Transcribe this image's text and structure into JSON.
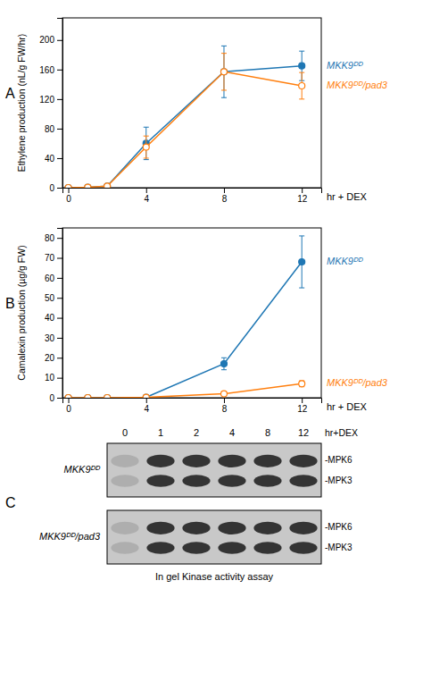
{
  "chart_data": [
    {
      "type": "line",
      "annotations": [
        "A"
      ],
      "ylabel": "Ethylene production (nL/g FW/hr)",
      "xlabel": "hr + DEX",
      "x": [
        0,
        1,
        2,
        4,
        8,
        12
      ],
      "xlim": [
        -0.3,
        13.0
      ],
      "xticks": [
        0,
        4,
        8,
        12
      ],
      "ylim": [
        0,
        230
      ],
      "yticks": [
        0,
        40,
        80,
        120,
        160,
        200
      ],
      "series": [
        {
          "name": "MKK9ᴰᴰ",
          "marker": "circle",
          "values": [
            0,
            0.5,
            2,
            60,
            157,
            165
          ],
          "errors": [
            0,
            0,
            0,
            22,
            35,
            20
          ]
        },
        {
          "name": "MKK9ᴰᴰ/pad3",
          "marker": "open-circle",
          "values": [
            0,
            0.5,
            2,
            55,
            157,
            138
          ],
          "errors": [
            0,
            0,
            0,
            15,
            25,
            18
          ]
        }
      ]
    },
    {
      "type": "line",
      "annotations": [
        "B"
      ],
      "ylabel": "Camalexin production (µg/g FW)",
      "xlabel": "hr + DEX",
      "x": [
        0,
        1,
        2,
        4,
        8,
        12
      ],
      "xlim": [
        -0.3,
        13.0
      ],
      "xticks": [
        0,
        4,
        8,
        12
      ],
      "ylim": [
        0,
        85
      ],
      "yticks": [
        0,
        10,
        20,
        30,
        40,
        50,
        60,
        70,
        80
      ],
      "series": [
        {
          "name": "MKK9ᴰᴰ",
          "marker": "circle",
          "values": [
            0,
            0,
            0,
            0.2,
            17,
            68
          ],
          "errors": [
            0,
            0,
            0,
            0,
            3,
            13
          ]
        },
        {
          "name": "MKK9ᴰᴰ/pad3",
          "marker": "open-circle",
          "values": [
            0,
            0,
            0,
            0.2,
            2,
            7
          ],
          "errors": [
            0,
            0,
            0,
            0,
            0.5,
            1.5
          ]
        }
      ]
    },
    {
      "type": "gel",
      "annotations": [
        "C",
        "hr+DEX",
        "-MPK6",
        "-MPK3"
      ],
      "xlabel": "In gel Kinase activity assay",
      "categories": [
        "0",
        "1",
        "2",
        "4",
        "8",
        "12"
      ],
      "colors": [
        "#aeaeae",
        "#343434",
        "#343434",
        "#343434",
        "#343434",
        "#343434"
      ],
      "series": [
        {
          "name": "MKK9ᴰᴰ"
        },
        {
          "name": "MKK9ᴰᴰ/pad3"
        }
      ]
    }
  ]
}
